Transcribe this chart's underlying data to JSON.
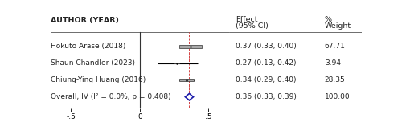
{
  "authors": [
    "Hokuto Arase (2018)",
    "Shaun Chandler (2023)",
    "Chiung-Ying Huang (2016)",
    "Overall, IV (I² = 0.0%, p = 0.408)"
  ],
  "effects": [
    0.37,
    0.27,
    0.34,
    0.36
  ],
  "ci_low": [
    0.33,
    0.13,
    0.29,
    0.33
  ],
  "ci_high": [
    0.4,
    0.42,
    0.4,
    0.39
  ],
  "weights": [
    67.71,
    3.94,
    28.35,
    100.0
  ],
  "effect_labels": [
    "0.37 (0.33, 0.40)",
    "0.27 (0.13, 0.42)",
    "0.34 (0.29, 0.40)",
    "0.36 (0.33, 0.39)"
  ],
  "weight_labels": [
    "67.71",
    "3.94",
    "28.35",
    "100.00"
  ],
  "xlim": [
    -0.65,
    0.65
  ],
  "xticks": [
    -0.5,
    0,
    0.5
  ],
  "xticklabels": [
    "-.5",
    "0",
    ".5"
  ],
  "col_author_label": "AUTHOR (YEAR)",
  "vline_x": 0,
  "dashed_vline_x": 0.36,
  "dashed_color": "#cc2222",
  "square_color": "#aaaaaa",
  "diamond_color": "#1a1aaa",
  "text_color": "#222222",
  "bg_color": "#ffffff"
}
